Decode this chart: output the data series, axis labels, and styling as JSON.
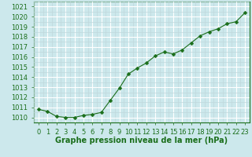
{
  "x": [
    0,
    1,
    2,
    3,
    4,
    5,
    6,
    7,
    8,
    9,
    10,
    11,
    12,
    13,
    14,
    15,
    16,
    17,
    18,
    19,
    20,
    21,
    22,
    23
  ],
  "y": [
    1010.8,
    1010.6,
    1010.1,
    1010.0,
    1010.0,
    1010.2,
    1010.3,
    1010.5,
    1011.7,
    1012.9,
    1014.3,
    1014.9,
    1015.4,
    1016.1,
    1016.5,
    1016.3,
    1016.7,
    1017.4,
    1018.1,
    1018.5,
    1018.8,
    1019.3,
    1019.5,
    1020.4
  ],
  "line_color": "#1a6e1a",
  "marker": "D",
  "marker_size": 2.5,
  "bg_color": "#cce8ec",
  "grid_major_color": "#ffffff",
  "grid_minor_color": "#c0d8dc",
  "ylabel_ticks": [
    1010,
    1011,
    1012,
    1013,
    1014,
    1015,
    1016,
    1017,
    1018,
    1019,
    1020,
    1021
  ],
  "ylim": [
    1009.5,
    1021.5
  ],
  "xlim": [
    -0.5,
    23.5
  ],
  "xlabel": "Graphe pression niveau de la mer (hPa)",
  "xlabel_color": "#1a6e1a",
  "tick_label_color": "#1a6e1a",
  "label_fontsize": 6.0,
  "xlabel_fontsize": 7.0,
  "spine_color": "#1a6e1a"
}
